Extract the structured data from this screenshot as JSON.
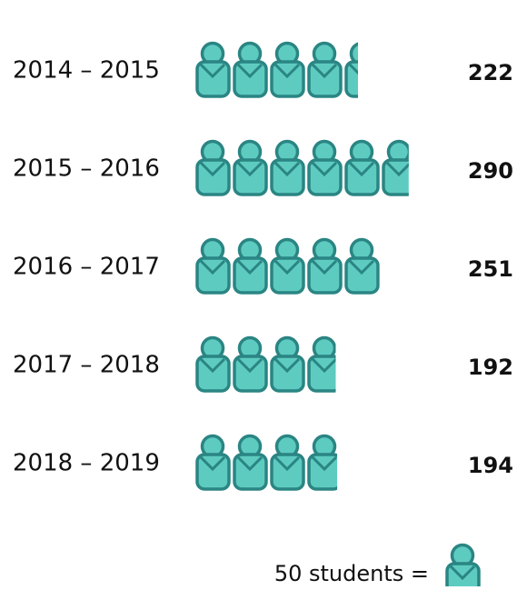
{
  "chart_data": {
    "type": "pictograph",
    "categories": [
      "2014 – 2015",
      "2015 – 2016",
      "2016 – 2017",
      "2017 – 2018",
      "2018 – 2019"
    ],
    "values": [
      222,
      290,
      251,
      192,
      194
    ],
    "unit": 50,
    "legend_label": "50 students =",
    "color": "#5ecbc0"
  }
}
